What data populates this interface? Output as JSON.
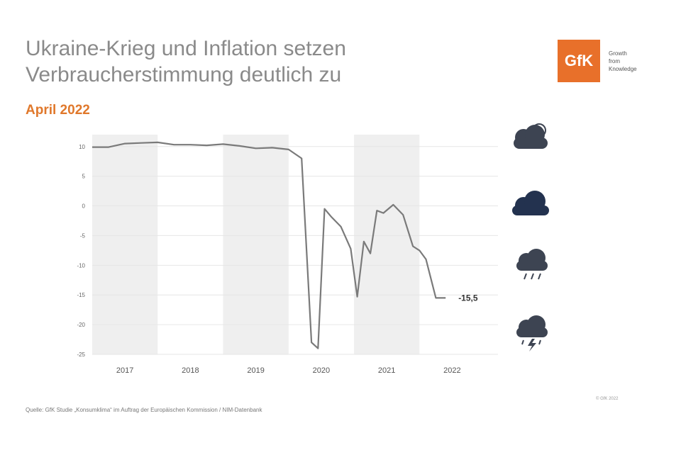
{
  "header": {
    "title_line1": "Ukraine-Krieg und Inflation setzen",
    "title_line2": "Verbraucherstimmung deutlich zu",
    "subtitle": "April 2022"
  },
  "logo": {
    "mark": "GfK",
    "tagline": [
      "Growth",
      "from",
      "Knowledge"
    ]
  },
  "weather_icons": [
    "sun-cloud-icon",
    "cloud-icon",
    "rain-cloud-icon",
    "storm-cloud-icon"
  ],
  "colors": {
    "line": "#7a7a7a",
    "band": "#efefef",
    "grid": "#e6e6e6",
    "accent": "#e0782b",
    "icon": "#3d4452",
    "icon_dark": "#23324f"
  },
  "footer": {
    "source": "Quelle: GfK Studie „Konsumklima“ im Auftrag der Europäischen Kommission / NIM-Datenbank",
    "copyright": "© GfK 2022"
  },
  "chart_data": {
    "type": "line",
    "ylim": [
      -25,
      12
    ],
    "yticks": [
      10,
      5,
      0,
      -5,
      -10,
      -15,
      -20,
      -25
    ],
    "ytick_labels": [
      "10",
      "5",
      "0",
      "-5",
      "-10",
      "-15",
      "-20",
      "-25"
    ],
    "xlim": [
      2016.5,
      2022.7
    ],
    "year_labels": [
      "2017",
      "2018",
      "2019",
      "2020",
      "2021",
      "2022"
    ],
    "year_label_x": [
      2017.0,
      2018.0,
      2019.0,
      2020.0,
      2021.0,
      2022.0
    ],
    "shaded_years": [
      [
        2016.5,
        2017.5
      ],
      [
        2018.5,
        2019.5
      ],
      [
        2020.5,
        2021.5
      ]
    ],
    "grid": true,
    "end_label": "-15,5",
    "series": [
      {
        "x": [
          2016.5,
          2016.75,
          2017.0,
          2017.25,
          2017.5,
          2017.75,
          2018.0,
          2018.25,
          2018.5,
          2018.75,
          2019.0,
          2019.25,
          2019.5,
          2019.7,
          2019.85,
          2019.95,
          2020.05,
          2020.15,
          2020.3,
          2020.45,
          2020.55,
          2020.65,
          2020.75,
          2020.85,
          2020.95,
          2021.1,
          2021.25,
          2021.4,
          2021.5,
          2021.6,
          2021.75,
          2021.9
        ],
        "y": [
          9.9,
          9.9,
          10.5,
          10.6,
          10.7,
          10.3,
          10.3,
          10.2,
          10.4,
          10.1,
          9.7,
          9.8,
          9.5,
          8.0,
          -23.0,
          -24.0,
          -0.5,
          -1.8,
          -3.5,
          -7.2,
          -15.3,
          -6.0,
          -8.0,
          -0.8,
          -1.2,
          0.2,
          -1.5,
          -6.8,
          -7.5,
          -9.0,
          -15.5,
          -15.5
        ]
      }
    ]
  }
}
